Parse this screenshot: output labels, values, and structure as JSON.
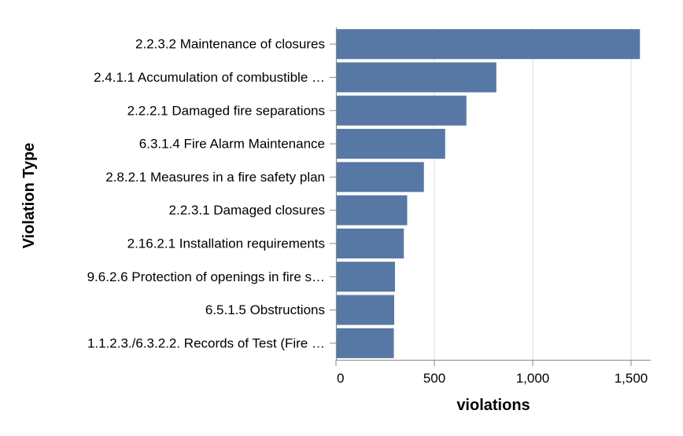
{
  "chart_data": {
    "type": "bar",
    "orientation": "horizontal",
    "categories": [
      "2.2.3.2 Maintenance of closures",
      "2.4.1.1 Accumulation of combustible …",
      "2.2.2.1 Damaged fire separations",
      "6.3.1.4 Fire Alarm Maintenance ",
      "2.8.2.1 Measures in a fire safety plan",
      "2.2.3.1 Damaged closures",
      "2.16.2.1 Installation requirements",
      "9.6.2.6 Protection of openings in fire s…",
      "6.5.1.5 Obstructions",
      "1.1.2.3./6.3.2.2. Records of Test (Fire …"
    ],
    "values": [
      1545,
      815,
      663,
      555,
      447,
      362,
      345,
      300,
      296,
      294
    ],
    "xlabel": "violations",
    "ylabel": "Violation Type",
    "xlim": [
      0,
      1600
    ],
    "x_ticks": [
      0,
      500,
      1000,
      1500
    ],
    "x_tick_labels": [
      "0",
      "500",
      "1,000",
      "1,500"
    ],
    "grid": true,
    "legend": "none",
    "bar_color": "#5778a4",
    "grid_color": "#dddddd",
    "axis_color": "#888888",
    "text_color": "#000000"
  }
}
